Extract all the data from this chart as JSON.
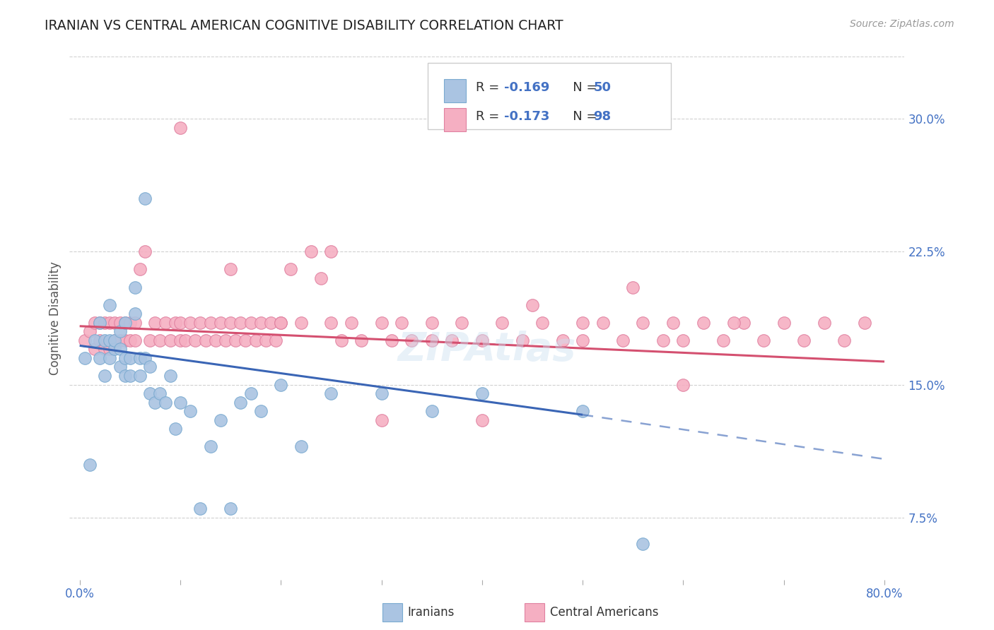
{
  "title": "IRANIAN VS CENTRAL AMERICAN COGNITIVE DISABILITY CORRELATION CHART",
  "source": "Source: ZipAtlas.com",
  "ylabel": "Cognitive Disability",
  "ytick_labels": [
    "7.5%",
    "15.0%",
    "22.5%",
    "30.0%"
  ],
  "ytick_values": [
    0.075,
    0.15,
    0.225,
    0.3
  ],
  "xlim": [
    -0.01,
    0.82
  ],
  "ylim": [
    0.04,
    0.335
  ],
  "color_iranian": "#aac4e2",
  "color_iranian_edge": "#7aaad0",
  "color_iranian_line": "#3a65b5",
  "color_central": "#f5afc2",
  "color_central_edge": "#e080a0",
  "color_central_line": "#d45070",
  "iran_line_x_start": 0.0,
  "iran_line_x_solid_end": 0.5,
  "iran_line_x_dash_end": 0.8,
  "iran_line_y_start": 0.172,
  "iran_line_y_solid_end": 0.133,
  "iran_line_y_dash_end": 0.108,
  "central_line_x_start": 0.0,
  "central_line_x_end": 0.8,
  "central_line_y_start": 0.183,
  "central_line_y_end": 0.163,
  "iranians_x": [
    0.005,
    0.01,
    0.015,
    0.02,
    0.02,
    0.025,
    0.025,
    0.03,
    0.03,
    0.03,
    0.035,
    0.035,
    0.04,
    0.04,
    0.04,
    0.045,
    0.045,
    0.045,
    0.05,
    0.05,
    0.055,
    0.055,
    0.06,
    0.06,
    0.065,
    0.065,
    0.07,
    0.07,
    0.075,
    0.08,
    0.085,
    0.09,
    0.095,
    0.1,
    0.11,
    0.12,
    0.13,
    0.14,
    0.15,
    0.16,
    0.17,
    0.18,
    0.2,
    0.22,
    0.25,
    0.3,
    0.35,
    0.4,
    0.5,
    0.56
  ],
  "iranians_y": [
    0.165,
    0.105,
    0.175,
    0.185,
    0.165,
    0.175,
    0.155,
    0.165,
    0.175,
    0.195,
    0.17,
    0.175,
    0.16,
    0.17,
    0.18,
    0.155,
    0.165,
    0.185,
    0.155,
    0.165,
    0.19,
    0.205,
    0.155,
    0.165,
    0.255,
    0.165,
    0.145,
    0.16,
    0.14,
    0.145,
    0.14,
    0.155,
    0.125,
    0.14,
    0.135,
    0.08,
    0.115,
    0.13,
    0.08,
    0.14,
    0.145,
    0.135,
    0.15,
    0.115,
    0.145,
    0.145,
    0.135,
    0.145,
    0.135,
    0.06
  ],
  "central_x": [
    0.005,
    0.01,
    0.015,
    0.015,
    0.02,
    0.02,
    0.025,
    0.025,
    0.03,
    0.03,
    0.035,
    0.035,
    0.04,
    0.04,
    0.045,
    0.045,
    0.05,
    0.05,
    0.055,
    0.055,
    0.06,
    0.065,
    0.07,
    0.075,
    0.08,
    0.085,
    0.09,
    0.095,
    0.1,
    0.1,
    0.105,
    0.11,
    0.115,
    0.12,
    0.125,
    0.13,
    0.135,
    0.14,
    0.145,
    0.15,
    0.155,
    0.16,
    0.165,
    0.17,
    0.175,
    0.18,
    0.185,
    0.19,
    0.195,
    0.2,
    0.21,
    0.22,
    0.23,
    0.24,
    0.25,
    0.26,
    0.27,
    0.28,
    0.3,
    0.31,
    0.32,
    0.33,
    0.35,
    0.37,
    0.38,
    0.4,
    0.42,
    0.44,
    0.46,
    0.48,
    0.5,
    0.52,
    0.54,
    0.56,
    0.58,
    0.59,
    0.6,
    0.62,
    0.64,
    0.66,
    0.68,
    0.7,
    0.72,
    0.74,
    0.76,
    0.78,
    0.15,
    0.2,
    0.25,
    0.1,
    0.3,
    0.35,
    0.4,
    0.45,
    0.5,
    0.55,
    0.6,
    0.65
  ],
  "central_y": [
    0.175,
    0.18,
    0.17,
    0.185,
    0.175,
    0.185,
    0.17,
    0.185,
    0.17,
    0.185,
    0.175,
    0.185,
    0.175,
    0.185,
    0.175,
    0.185,
    0.175,
    0.185,
    0.175,
    0.185,
    0.215,
    0.225,
    0.175,
    0.185,
    0.175,
    0.185,
    0.175,
    0.185,
    0.175,
    0.185,
    0.175,
    0.185,
    0.175,
    0.185,
    0.175,
    0.185,
    0.175,
    0.185,
    0.175,
    0.185,
    0.175,
    0.185,
    0.175,
    0.185,
    0.175,
    0.185,
    0.175,
    0.185,
    0.175,
    0.185,
    0.215,
    0.185,
    0.225,
    0.21,
    0.185,
    0.175,
    0.185,
    0.175,
    0.185,
    0.175,
    0.185,
    0.175,
    0.185,
    0.175,
    0.185,
    0.175,
    0.185,
    0.175,
    0.185,
    0.175,
    0.175,
    0.185,
    0.175,
    0.185,
    0.175,
    0.185,
    0.175,
    0.185,
    0.175,
    0.185,
    0.175,
    0.185,
    0.175,
    0.185,
    0.175,
    0.185,
    0.215,
    0.185,
    0.225,
    0.295,
    0.13,
    0.175,
    0.13,
    0.195,
    0.185,
    0.205,
    0.15,
    0.185
  ]
}
